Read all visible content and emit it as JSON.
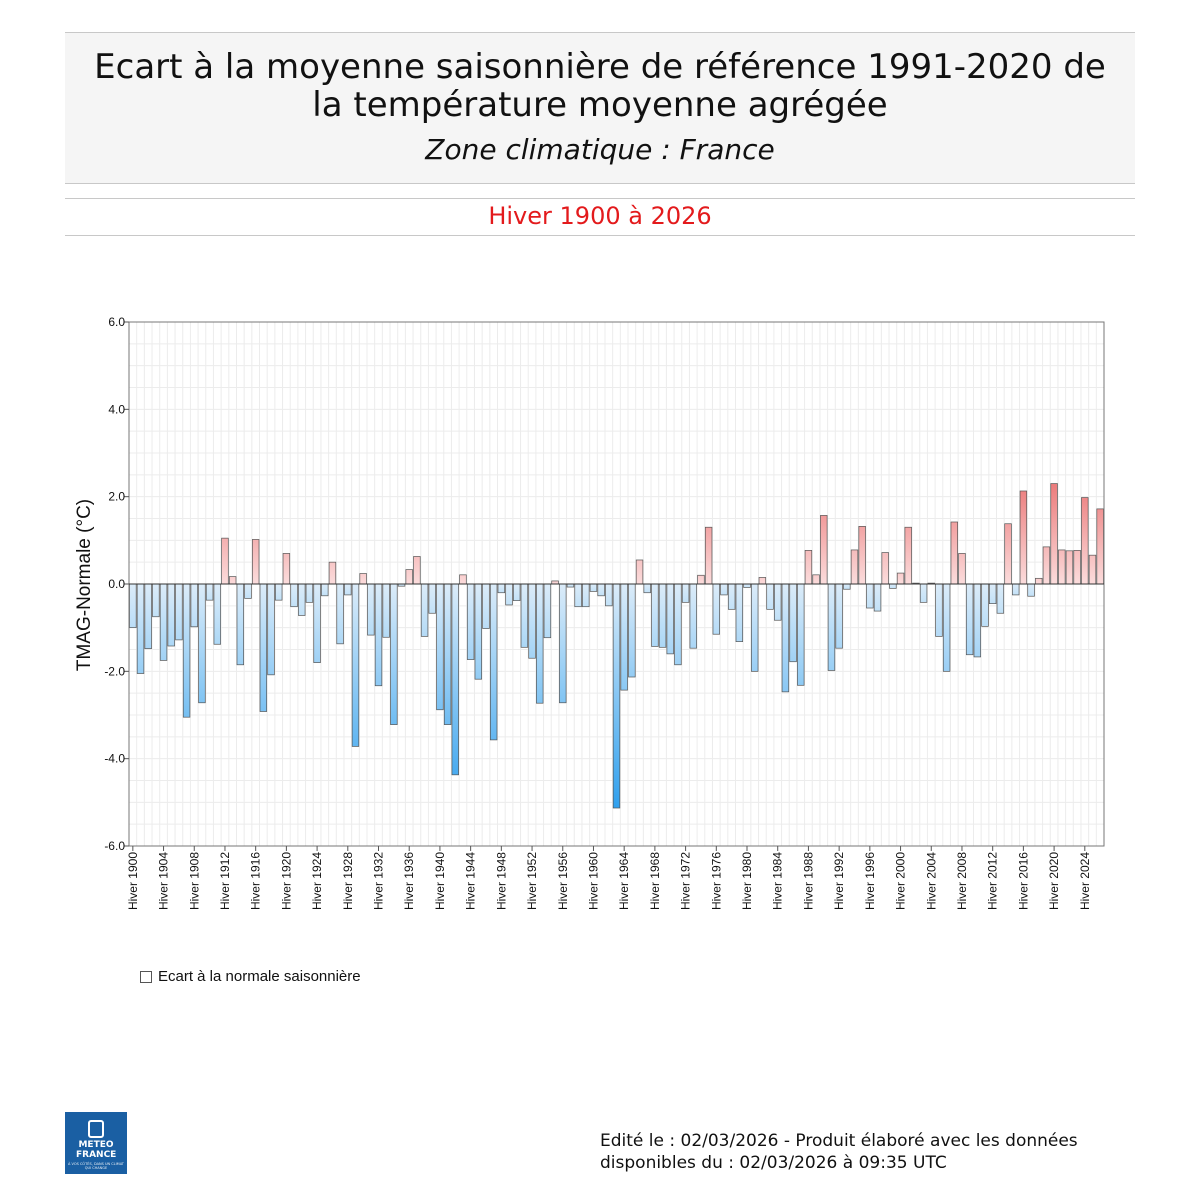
{
  "header": {
    "title_line1": "Ecart à la moyenne saisonnière  de référence 1991-2020  de",
    "title_line2": "la température moyenne  agrégée",
    "zone": "Zone climatique : France"
  },
  "subtitle": "Hiver 1900 à 2026",
  "legend": {
    "label": "Ecart à la normale saisonnière"
  },
  "footer": {
    "line1": "Edité le : 02/03/2026 - Produit élaboré avec les données",
    "line2": "disponibles du : 02/03/2026 à 09:35 UTC"
  },
  "logo": {
    "name": "METEO FRANCE",
    "tagline": "À VOS CÔTÉS, DANS UN CLIMAT QUI CHANGE"
  },
  "chart_data": {
    "type": "bar",
    "ylabel": "TMAG-Normale (°C)",
    "ylim": [
      -6,
      6
    ],
    "yticks": [
      -6,
      -4,
      -2,
      0,
      2,
      4,
      6
    ],
    "ytick_labels": [
      "-6.0",
      "-4.0",
      "-2.0",
      "0.0",
      "2.0",
      "4.0",
      "6.0"
    ],
    "x_start": 1900,
    "x_end": 2026,
    "xtick_years": [
      1900,
      1904,
      1908,
      1912,
      1916,
      1920,
      1924,
      1928,
      1932,
      1936,
      1940,
      1944,
      1948,
      1952,
      1956,
      1960,
      1964,
      1968,
      1972,
      1976,
      1980,
      1984,
      1988,
      1992,
      1996,
      2000,
      2004,
      2008,
      2012,
      2016,
      2020,
      2024
    ],
    "xtick_prefix": "Hiver",
    "grid": true,
    "colors": {
      "positive_light": "#fbdcdc",
      "positive_dark": "#ec7b7b",
      "negative_light": "#dcecf9",
      "negative_dark": "#2fa0ee"
    },
    "values": [
      -1.0,
      -2.05,
      -1.48,
      -0.75,
      -1.75,
      -1.42,
      -1.28,
      -3.05,
      -0.98,
      -2.72,
      -0.37,
      -1.38,
      1.05,
      0.17,
      -1.85,
      -0.33,
      1.02,
      -2.92,
      -2.08,
      -0.37,
      0.7,
      -0.52,
      -0.72,
      -0.42,
      -1.8,
      -0.27,
      0.5,
      -1.37,
      -0.25,
      -3.72,
      0.24,
      -1.17,
      -2.33,
      -1.22,
      -3.22,
      -0.05,
      0.33,
      0.63,
      -1.2,
      -0.67,
      -2.88,
      -3.22,
      -4.37,
      0.21,
      -1.73,
      -2.18,
      -1.02,
      -3.57,
      -0.2,
      -0.48,
      -0.38,
      -1.45,
      -1.7,
      -2.73,
      -1.23,
      0.07,
      -2.72,
      -0.07,
      -0.52,
      -0.52,
      -0.17,
      -0.27,
      -0.5,
      -5.13,
      -2.43,
      -2.13,
      0.55,
      -0.2,
      -1.43,
      -1.45,
      -1.6,
      -1.85,
      -0.42,
      -1.47,
      0.2,
      1.3,
      -1.15,
      -0.25,
      -0.58,
      -1.32,
      -0.08,
      -2.0,
      0.15,
      -0.58,
      -0.83,
      -2.47,
      -1.78,
      -2.32,
      0.77,
      0.21,
      1.57,
      -1.98,
      -1.47,
      -0.12,
      0.78,
      1.32,
      -0.55,
      -0.62,
      0.72,
      -0.1,
      0.25,
      1.3,
      0.02,
      -0.42,
      0.02,
      -1.2,
      -2.0,
      1.42,
      0.7,
      -1.62,
      -1.67,
      -0.97,
      -0.45,
      -0.67,
      1.38,
      -0.25,
      2.13,
      -0.28,
      0.13,
      0.85,
      2.3,
      0.78,
      0.76,
      0.77,
      1.98,
      0.66,
      1.72
    ]
  }
}
